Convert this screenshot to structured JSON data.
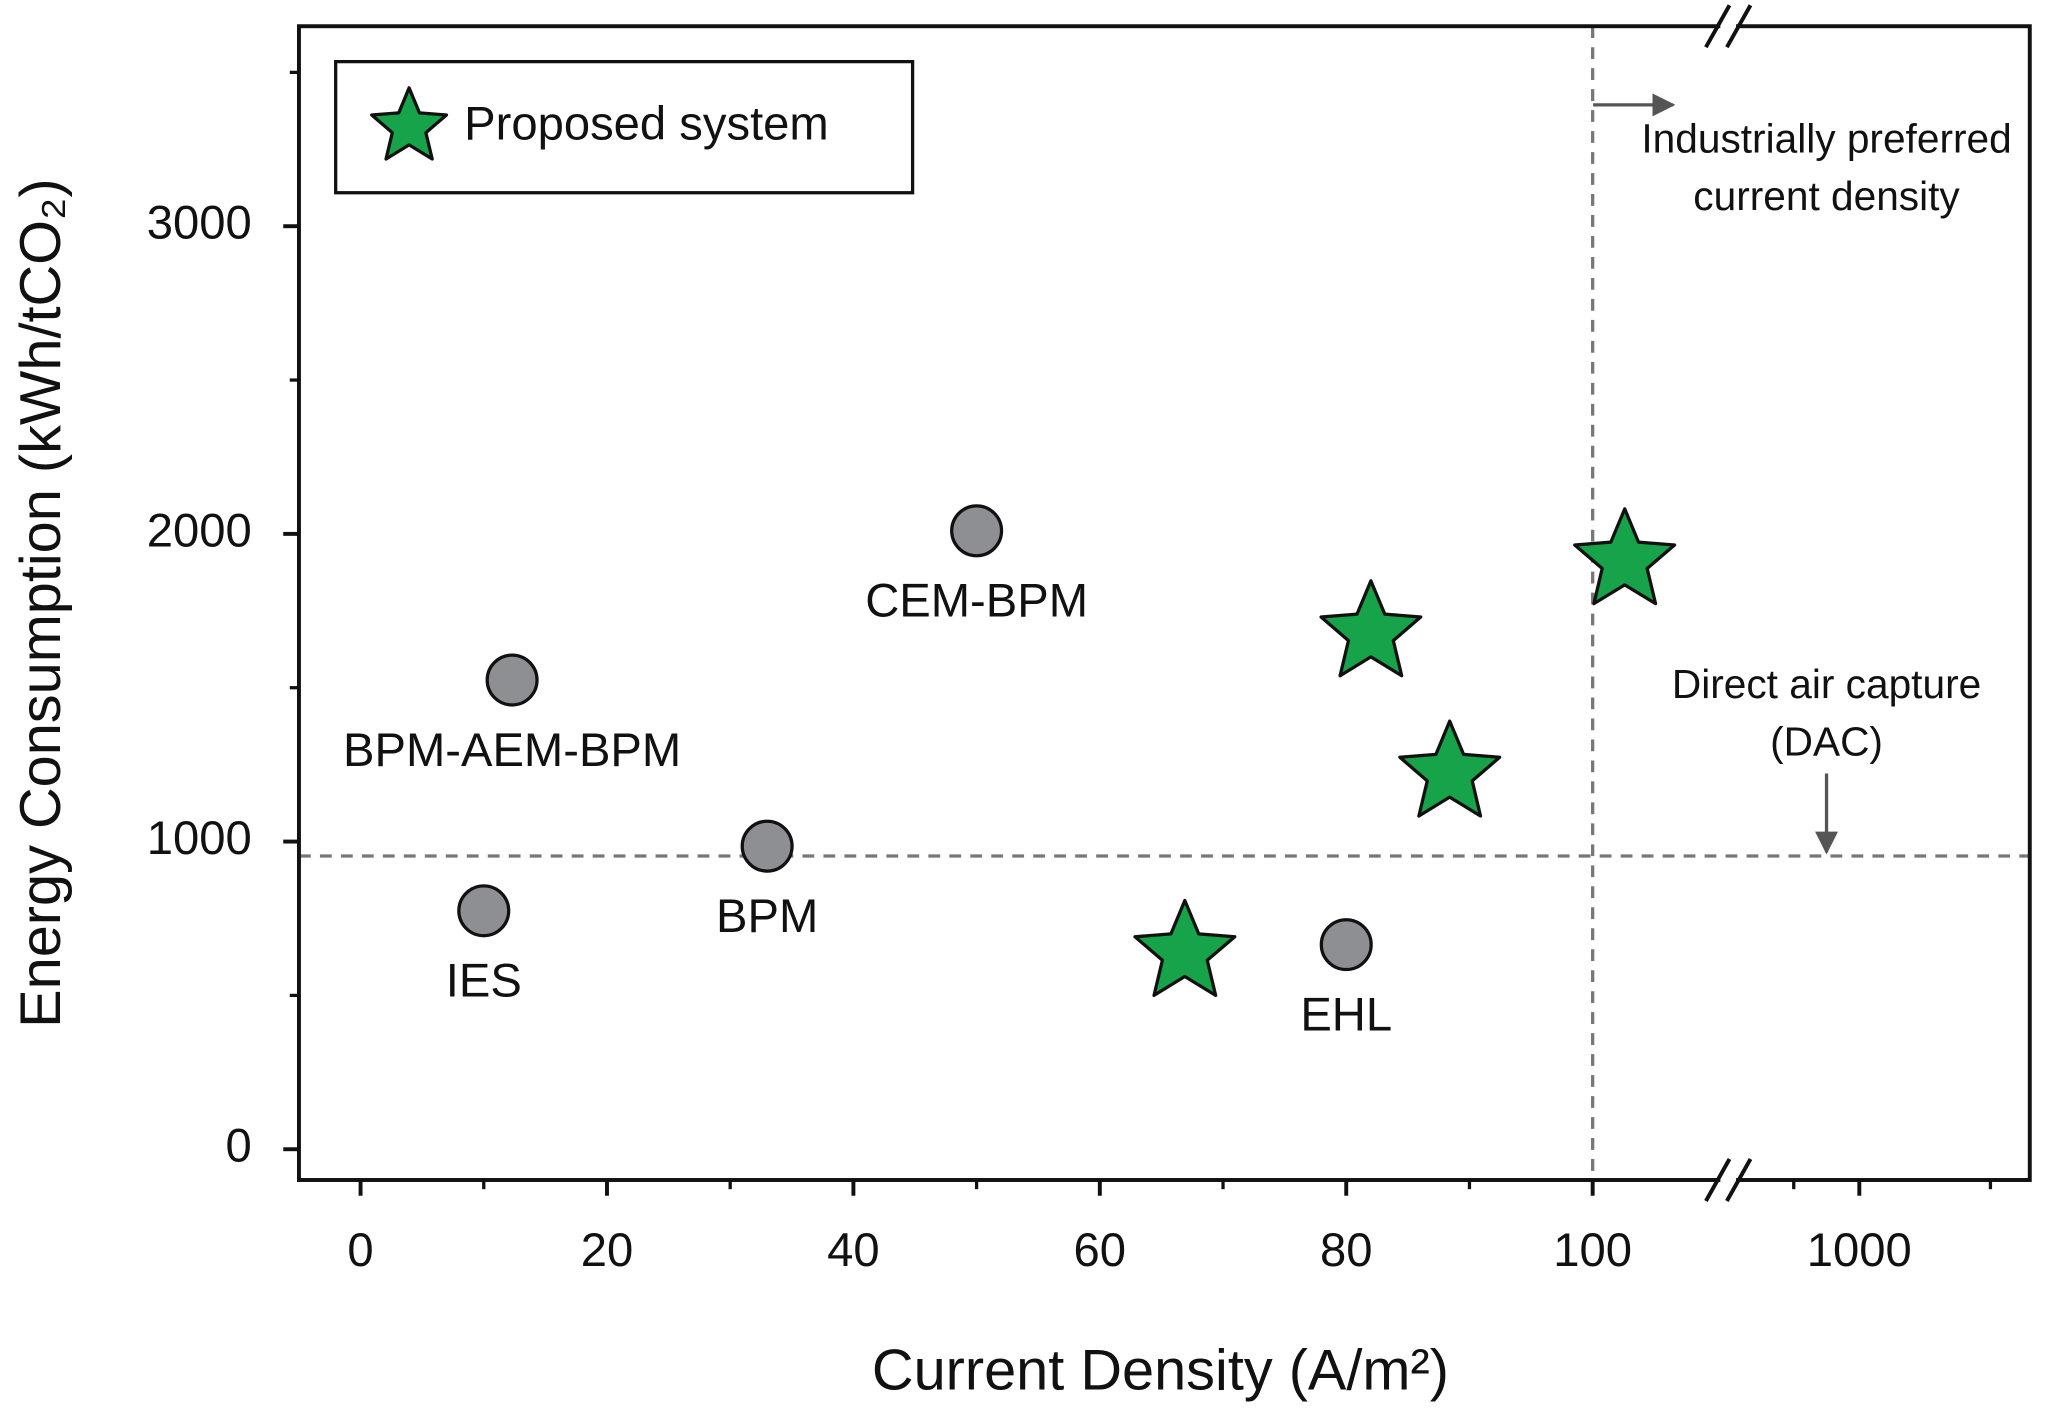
{
  "chart_data": {
    "type": "scatter",
    "x_label": "Current Density (A/m²)",
    "y_label": "Energy Consumption (kWh/tCO₂)",
    "xlim": [
      -5,
      1130
    ],
    "xbreak": [
      111,
      900
    ],
    "xticks": [
      0,
      20,
      40,
      60,
      80,
      100,
      1000
    ],
    "xminor": [
      10,
      30,
      50,
      70,
      90,
      950,
      1100
    ],
    "ylim": [
      -100,
      3650
    ],
    "yticks": [
      0,
      1000,
      2000,
      3000
    ],
    "yminor": [
      500,
      1500,
      2500,
      3500
    ],
    "legend": "upper left",
    "series": [
      {
        "name": "Proposed system",
        "marker": "star",
        "color": "#16a34a",
        "x": [
          66.9,
          82.0,
          88.4,
          102.6
        ],
        "values": [
          638,
          1677,
          1221,
          1911
        ]
      },
      {
        "marker": "circle",
        "color": "#8e8f93",
        "labels": [
          "IES",
          "BPM-AEM-BPM",
          "BPM",
          "CEM-BPM",
          "EHL"
        ],
        "x": [
          10,
          12.3,
          33,
          50,
          80
        ],
        "values": [
          775,
          1525,
          985,
          2010,
          665
        ]
      }
    ],
    "reference_lines": {
      "x": 100,
      "y": 953
    },
    "annotations": [
      {
        "lines": [
          "Industrially preferred",
          "current density"
        ]
      },
      {
        "lines": [
          "Direct air capture",
          "(DAC)"
        ]
      }
    ]
  }
}
